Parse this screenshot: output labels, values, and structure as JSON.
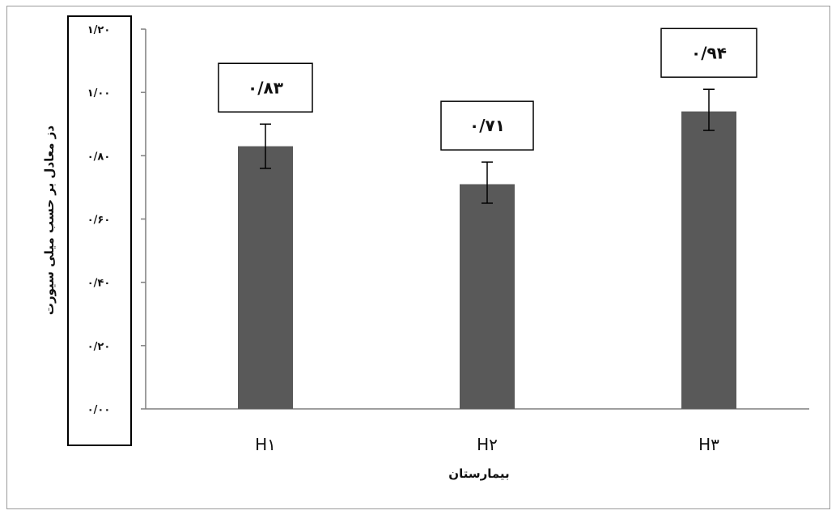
{
  "chart_data": {
    "type": "bar",
    "categories": [
      "H۱",
      "H۲",
      "H۳"
    ],
    "values": [
      0.83,
      0.71,
      0.94
    ],
    "data_labels": [
      "۰/۸۳",
      "۰/۷۱",
      "۰/۹۴"
    ],
    "error_bars": [
      {
        "low": 0.76,
        "high": 0.9
      },
      {
        "low": 0.65,
        "high": 0.78
      },
      {
        "low": 0.88,
        "high": 1.01
      }
    ],
    "ylim": [
      0,
      1.2
    ],
    "ytick_values": [
      0,
      0.2,
      0.4,
      0.6,
      0.8,
      1.0,
      1.2
    ],
    "ytick_labels": [
      "۰/۰۰",
      "۰/۲۰",
      "۰/۴۰",
      "۰/۶۰",
      "۰/۸۰",
      "۱/۰۰",
      "۱/۲۰"
    ],
    "ylabel": "دز معادل بر حسب میلی سیورت",
    "xlabel": "بیمارستان",
    "grid": false,
    "legend": "none",
    "colors": {
      "bar": "#595959",
      "axis": "#7f7f7f",
      "frame": "#9a9a9a",
      "text": "#111111"
    }
  }
}
